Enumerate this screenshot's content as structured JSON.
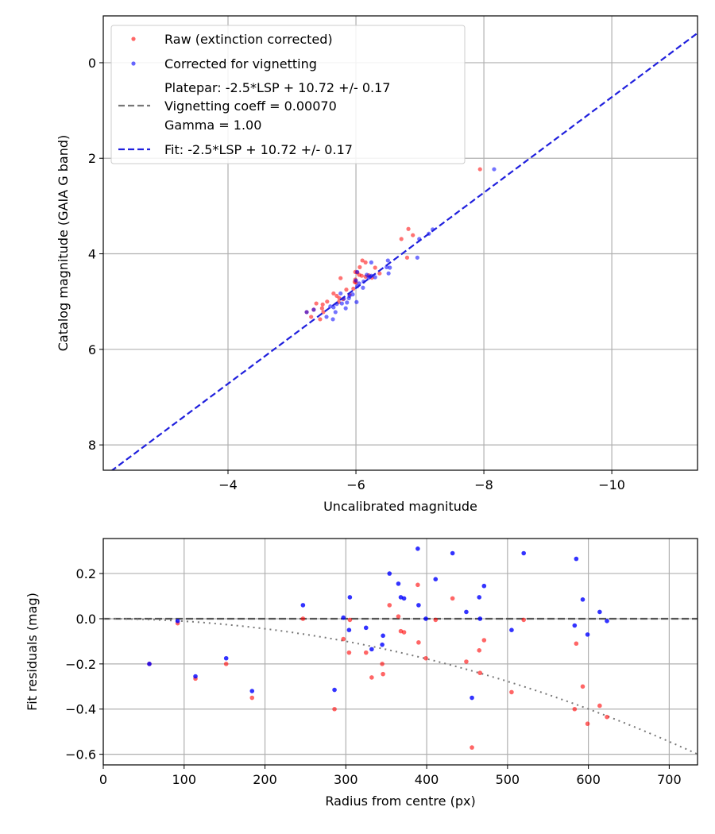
{
  "chart_data": [
    {
      "type": "scatter",
      "xlabel": "Uncalibrated magnitude",
      "ylabel": "Catalog magnitude (GAIA G band)",
      "xlim": [
        -2.05,
        -11.34
      ],
      "ylim": [
        8.53,
        -0.98
      ],
      "grid": true,
      "x_ticks": [
        -4,
        -6,
        -8,
        -10
      ],
      "x_tick_labels": [
        "−4",
        "−6",
        "−8",
        "−10"
      ],
      "y_ticks": [
        0,
        2,
        4,
        6,
        8
      ],
      "y_tick_labels": [
        "0",
        "2",
        "4",
        "6",
        "8"
      ],
      "legend_position": "top-left",
      "legend": [
        "Raw (extinction corrected)",
        "Corrected for vignetting",
        "Platepar: -2.5*LSP + 10.72 +/- 0.17",
        "Vignetting coeff = 0.00070",
        "Gamma = 1.00",
        "Fit: -2.5*LSP + 10.72 +/- 0.17"
      ],
      "series": [
        {
          "name": "Raw (extinction corrected)",
          "color": "#ff0000",
          "points": [
            [
              -6.1,
              4.14
            ],
            [
              -6.15,
              4.18
            ],
            [
              -6.3,
              4.29
            ],
            [
              -6.06,
              4.28
            ],
            [
              -5.99,
              4.38
            ],
            [
              -6.05,
              4.44
            ],
            [
              -6.09,
              4.46
            ],
            [
              -5.76,
              4.51
            ],
            [
              -5.99,
              4.54
            ],
            [
              -5.98,
              4.59
            ],
            [
              -6.37,
              4.41
            ],
            [
              -6.02,
              4.39
            ],
            [
              -5.96,
              4.73
            ],
            [
              -5.65,
              4.83
            ],
            [
              -5.7,
              4.88
            ],
            [
              -5.74,
              4.93
            ],
            [
              -5.73,
              5.01
            ],
            [
              -5.38,
              5.04
            ],
            [
              -5.48,
              5.06
            ],
            [
              -5.47,
              5.14
            ],
            [
              -5.34,
              5.17
            ],
            [
              -5.23,
              5.22
            ],
            [
              -5.49,
              5.22
            ],
            [
              -5.3,
              5.32
            ],
            [
              -5.44,
              5.37
            ],
            [
              -7.94,
              2.23
            ],
            [
              -6.82,
              3.48
            ],
            [
              -6.89,
              3.61
            ],
            [
              -6.71,
              3.69
            ],
            [
              -6.8,
              4.08
            ],
            [
              -6.2,
              4.45
            ],
            [
              -6.25,
              4.5
            ],
            [
              -6.15,
              4.48
            ],
            [
              -5.85,
              4.75
            ],
            [
              -5.8,
              4.95
            ],
            [
              -5.55,
              5.0
            ],
            [
              -5.9,
              4.85
            ],
            [
              -6.0,
              4.6
            ]
          ]
        },
        {
          "name": "Corrected for vignetting",
          "color": "#0000ff",
          "points": [
            [
              -6.24,
              4.18
            ],
            [
              -6.5,
              4.14
            ],
            [
              -6.96,
              4.08
            ],
            [
              -6.48,
              4.28
            ],
            [
              -6.53,
              4.29
            ],
            [
              -6.51,
              4.41
            ],
            [
              -6.02,
              4.38
            ],
            [
              -6.17,
              4.44
            ],
            [
              -6.24,
              4.46
            ],
            [
              -6.3,
              4.49
            ],
            [
              -6.0,
              4.56
            ],
            [
              -6.12,
              4.58
            ],
            [
              -6.02,
              4.68
            ],
            [
              -6.11,
              4.71
            ],
            [
              -5.76,
              4.83
            ],
            [
              -5.89,
              4.93
            ],
            [
              -5.81,
              4.94
            ],
            [
              -5.86,
              5.02
            ],
            [
              -5.78,
              5.04
            ],
            [
              -6.01,
              5.01
            ],
            [
              -5.65,
              5.12
            ],
            [
              -5.84,
              5.14
            ],
            [
              -5.23,
              5.22
            ],
            [
              -5.34,
              5.17
            ],
            [
              -5.68,
              5.22
            ],
            [
              -5.54,
              5.32
            ],
            [
              -5.64,
              5.37
            ],
            [
              -8.16,
              2.23
            ],
            [
              -7.2,
              3.49
            ],
            [
              -7.14,
              3.58
            ],
            [
              -6.99,
              3.69
            ],
            [
              -6.2,
              4.5
            ],
            [
              -6.22,
              4.48
            ],
            [
              -5.9,
              4.88
            ],
            [
              -5.95,
              4.85
            ],
            [
              -6.05,
              4.62
            ],
            [
              -5.7,
              5.05
            ],
            [
              -5.6,
              5.1
            ]
          ]
        },
        {
          "name": "Fit: -2.5*LSP + 10.72 +/- 0.17",
          "type": "line",
          "color": "#2020dd",
          "slope": 1,
          "intercept": 10.72
        }
      ]
    },
    {
      "type": "scatter",
      "xlabel": "Radius from centre (px)",
      "ylabel": "Fit residuals (mag)",
      "xlim": [
        0,
        735
      ],
      "ylim": [
        -0.647,
        0.355
      ],
      "grid": true,
      "x_ticks": [
        0,
        100,
        200,
        300,
        400,
        500,
        600,
        700
      ],
      "x_tick_labels": [
        "0",
        "100",
        "200",
        "300",
        "400",
        "500",
        "600",
        "700"
      ],
      "y_ticks": [
        0.2,
        0,
        -0.2,
        -0.4,
        -0.6
      ],
      "y_tick_labels": [
        "0.2",
        "0.0",
        "−0.2",
        "−0.4",
        "−0.6"
      ],
      "radius": [
        57,
        92,
        114,
        152,
        184,
        247,
        286,
        297,
        304,
        305,
        325,
        332,
        345,
        346,
        354,
        365,
        368,
        372,
        389,
        390,
        399,
        411,
        432,
        449,
        456,
        465,
        466,
        471,
        505,
        520,
        583,
        585,
        593,
        599,
        614,
        623
      ],
      "series": [
        {
          "name": "Raw",
          "color": "#ff0000",
          "values": [
            -0.2,
            -0.02,
            -0.265,
            -0.2,
            -0.35,
            0.0,
            -0.4,
            -0.09,
            -0.15,
            -0.005,
            -0.15,
            -0.26,
            -0.2,
            -0.245,
            0.06,
            0.01,
            -0.055,
            -0.06,
            0.15,
            -0.105,
            -0.175,
            -0.005,
            0.09,
            -0.19,
            -0.57,
            -0.14,
            -0.24,
            -0.095,
            -0.325,
            -0.005,
            -0.4,
            -0.11,
            -0.3,
            -0.465,
            -0.385,
            -0.435
          ]
        },
        {
          "name": "Corrected",
          "color": "#0000ff",
          "values": [
            -0.2,
            -0.01,
            -0.255,
            -0.175,
            -0.32,
            0.06,
            -0.315,
            0.005,
            -0.05,
            0.095,
            -0.04,
            -0.135,
            -0.115,
            -0.075,
            0.2,
            0.155,
            0.095,
            0.09,
            0.31,
            0.06,
            0.0,
            0.175,
            0.29,
            0.03,
            -0.35,
            0.095,
            0.0,
            0.145,
            -0.05,
            0.29,
            -0.03,
            0.265,
            0.085,
            -0.07,
            0.03,
            -0.01
          ]
        },
        {
          "name": "Zero line",
          "type": "hline",
          "value": 0,
          "color": "#555555"
        },
        {
          "name": "Vignetting model",
          "type": "curve",
          "coef": 1.11e-06,
          "color": "#777777"
        }
      ]
    }
  ]
}
